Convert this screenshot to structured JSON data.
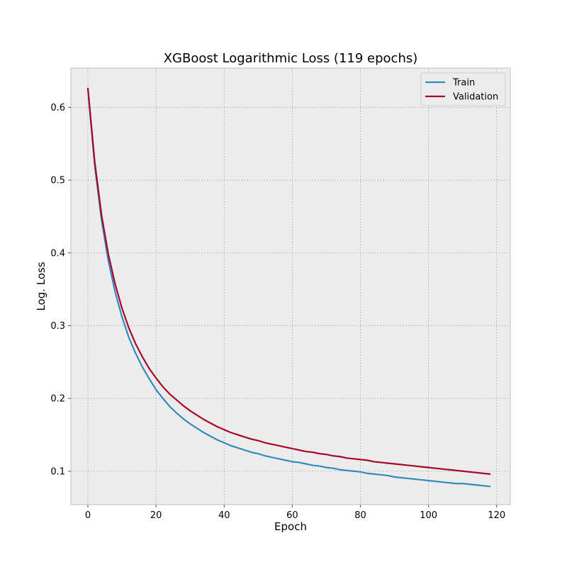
{
  "chart_data": {
    "type": "line",
    "title": "XGBoost Logarithmic Loss (119 epochs)",
    "xlabel": "Epoch",
    "ylabel": "Log. Loss",
    "xlim": [
      -5,
      124
    ],
    "ylim": [
      0.054,
      0.654
    ],
    "xticks": [
      0,
      20,
      40,
      60,
      80,
      100,
      120
    ],
    "yticks": [
      0.1,
      0.2,
      0.3,
      0.4,
      0.5,
      0.6
    ],
    "grid": true,
    "legend_position": "top-right",
    "background": "#ececec",
    "series": [
      {
        "name": "Train",
        "color": "#348abd",
        "points": [
          [
            0,
            0.625
          ],
          [
            2,
            0.52
          ],
          [
            4,
            0.445
          ],
          [
            6,
            0.389
          ],
          [
            8,
            0.346
          ],
          [
            10,
            0.312
          ],
          [
            12,
            0.284
          ],
          [
            14,
            0.262
          ],
          [
            16,
            0.243
          ],
          [
            18,
            0.227
          ],
          [
            20,
            0.212
          ],
          [
            22,
            0.2
          ],
          [
            24,
            0.189
          ],
          [
            26,
            0.18
          ],
          [
            28,
            0.172
          ],
          [
            30,
            0.165
          ],
          [
            32,
            0.159
          ],
          [
            34,
            0.153
          ],
          [
            36,
            0.148
          ],
          [
            38,
            0.143
          ],
          [
            40,
            0.139
          ],
          [
            42,
            0.135
          ],
          [
            44,
            0.132
          ],
          [
            46,
            0.129
          ],
          [
            48,
            0.126
          ],
          [
            50,
            0.124
          ],
          [
            52,
            0.121
          ],
          [
            54,
            0.119
          ],
          [
            56,
            0.117
          ],
          [
            58,
            0.115
          ],
          [
            60,
            0.113
          ],
          [
            62,
            0.112
          ],
          [
            64,
            0.11
          ],
          [
            66,
            0.108
          ],
          [
            68,
            0.107
          ],
          [
            70,
            0.105
          ],
          [
            72,
            0.104
          ],
          [
            74,
            0.102
          ],
          [
            76,
            0.101
          ],
          [
            78,
            0.1
          ],
          [
            80,
            0.099
          ],
          [
            82,
            0.097
          ],
          [
            84,
            0.096
          ],
          [
            86,
            0.095
          ],
          [
            88,
            0.094
          ],
          [
            90,
            0.092
          ],
          [
            92,
            0.091
          ],
          [
            94,
            0.09
          ],
          [
            96,
            0.089
          ],
          [
            98,
            0.088
          ],
          [
            100,
            0.087
          ],
          [
            102,
            0.086
          ],
          [
            104,
            0.085
          ],
          [
            106,
            0.084
          ],
          [
            108,
            0.083
          ],
          [
            110,
            0.083
          ],
          [
            112,
            0.082
          ],
          [
            114,
            0.081
          ],
          [
            116,
            0.08
          ],
          [
            118,
            0.079
          ]
        ]
      },
      {
        "name": "Validation",
        "color": "#a60628",
        "points": [
          [
            0,
            0.626
          ],
          [
            2,
            0.525
          ],
          [
            4,
            0.452
          ],
          [
            6,
            0.398
          ],
          [
            8,
            0.357
          ],
          [
            10,
            0.324
          ],
          [
            12,
            0.297
          ],
          [
            14,
            0.275
          ],
          [
            16,
            0.257
          ],
          [
            18,
            0.241
          ],
          [
            20,
            0.228
          ],
          [
            22,
            0.216
          ],
          [
            24,
            0.206
          ],
          [
            26,
            0.198
          ],
          [
            28,
            0.19
          ],
          [
            30,
            0.183
          ],
          [
            32,
            0.177
          ],
          [
            34,
            0.171
          ],
          [
            36,
            0.166
          ],
          [
            38,
            0.161
          ],
          [
            40,
            0.157
          ],
          [
            42,
            0.153
          ],
          [
            44,
            0.15
          ],
          [
            46,
            0.147
          ],
          [
            48,
            0.144
          ],
          [
            50,
            0.142
          ],
          [
            52,
            0.139
          ],
          [
            54,
            0.137
          ],
          [
            56,
            0.135
          ],
          [
            58,
            0.133
          ],
          [
            60,
            0.131
          ],
          [
            62,
            0.129
          ],
          [
            64,
            0.127
          ],
          [
            66,
            0.126
          ],
          [
            68,
            0.124
          ],
          [
            70,
            0.123
          ],
          [
            72,
            0.121
          ],
          [
            74,
            0.12
          ],
          [
            76,
            0.118
          ],
          [
            78,
            0.117
          ],
          [
            80,
            0.116
          ],
          [
            82,
            0.115
          ],
          [
            84,
            0.113
          ],
          [
            86,
            0.112
          ],
          [
            88,
            0.111
          ],
          [
            90,
            0.11
          ],
          [
            92,
            0.109
          ],
          [
            94,
            0.108
          ],
          [
            96,
            0.107
          ],
          [
            98,
            0.106
          ],
          [
            100,
            0.105
          ],
          [
            102,
            0.104
          ],
          [
            104,
            0.103
          ],
          [
            106,
            0.102
          ],
          [
            108,
            0.101
          ],
          [
            110,
            0.1
          ],
          [
            112,
            0.099
          ],
          [
            114,
            0.098
          ],
          [
            116,
            0.097
          ],
          [
            118,
            0.096
          ]
        ]
      }
    ]
  }
}
